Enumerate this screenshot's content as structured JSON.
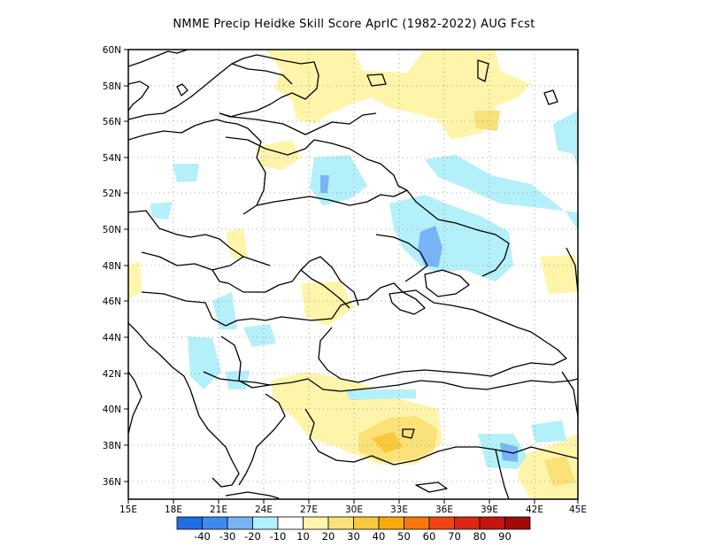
{
  "title": "NMME Precip Heidke Skill Score AprIC (1982-2022) AUG Fcst",
  "map": {
    "lon_range": [
      15,
      45
    ],
    "lat_range": [
      35,
      60
    ],
    "lat_ticks": [
      "36N",
      "38N",
      "40N",
      "42N",
      "44N",
      "46N",
      "48N",
      "50N",
      "52N",
      "54N",
      "56N",
      "58N",
      "60N"
    ],
    "lon_ticks": [
      "15E",
      "18E",
      "21E",
      "24E",
      "27E",
      "30E",
      "33E",
      "36E",
      "39E",
      "42E",
      "45E"
    ],
    "grid": "dotted"
  },
  "colorbar": {
    "labels": [
      "-40",
      "-30",
      "-20",
      "-10",
      "10",
      "20",
      "30",
      "40",
      "50",
      "60",
      "70",
      "80",
      "90"
    ],
    "colors": [
      "#1e6ee6",
      "#3c8cf0",
      "#78b4f5",
      "#b4f0fa",
      "#ffffff",
      "#fff5aa",
      "#fae178",
      "#fac83c",
      "#faaa0a",
      "#fa780a",
      "#f04614",
      "#dc2810",
      "#c31410",
      "#a00a0a"
    ]
  },
  "skill_colors": {
    "neg10": "#b4f0fa",
    "neg20": "#78b4f5",
    "pos10": "#fff5aa",
    "pos20": "#fae178",
    "pos30": "#fac83c"
  }
}
